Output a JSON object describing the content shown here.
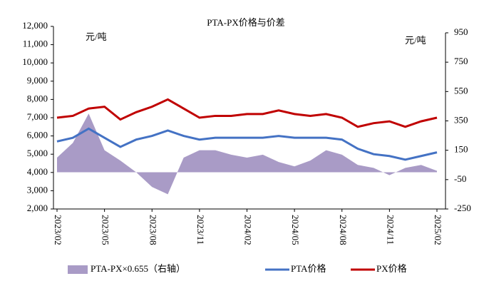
{
  "chart_data": {
    "type": "combo",
    "title": "PTA-PX价格与价差",
    "y_unit": "元/吨",
    "y2_unit": "元/吨",
    "x": [
      "2023/02",
      "2023/03",
      "2023/04",
      "2023/05",
      "2023/06",
      "2023/07",
      "2023/08",
      "2023/09",
      "2023/10",
      "2023/11",
      "2023/12",
      "2024/01",
      "2024/02",
      "2024/03",
      "2024/04",
      "2024/05",
      "2024/06",
      "2024/07",
      "2024/08",
      "2024/09",
      "2024/10",
      "2024/11",
      "2024/12",
      "2025/01",
      "2025/02"
    ],
    "xticks": [
      "2023/02",
      "2023/05",
      "2023/08",
      "2023/11",
      "2024/02",
      "2024/05",
      "2024/08",
      "2024/11",
      "2025/02"
    ],
    "series": [
      {
        "name": "PTA-PX×0.655（右轴）",
        "kind": "area",
        "axis": "y2",
        "color": "#a99bc6",
        "values": [
          100,
          200,
          400,
          150,
          80,
          0,
          -100,
          -150,
          100,
          150,
          150,
          120,
          100,
          120,
          70,
          40,
          80,
          150,
          120,
          50,
          30,
          -20,
          30,
          50,
          10
        ]
      },
      {
        "name": "PTA价格",
        "kind": "line",
        "color": "#4472c4",
        "values": [
          5700,
          5900,
          6400,
          5900,
          5400,
          5800,
          6000,
          6300,
          6000,
          5800,
          5900,
          5900,
          5900,
          5900,
          6000,
          5900,
          5900,
          5900,
          5800,
          5300,
          5000,
          4900,
          4700,
          4900,
          5100
        ]
      },
      {
        "name": "PX价格",
        "kind": "line",
        "color": "#c00000",
        "values": [
          7000,
          7100,
          7500,
          7600,
          6900,
          7300,
          7600,
          8000,
          7500,
          7000,
          7100,
          7100,
          7200,
          7200,
          7400,
          7200,
          7100,
          7200,
          7000,
          6500,
          6700,
          6800,
          6500,
          6800,
          7000
        ]
      }
    ],
    "ylim": [
      2000,
      12000
    ],
    "yticks": [
      {
        "value": 2000,
        "label": "2,000"
      },
      {
        "value": 3000,
        "label": "3,000"
      },
      {
        "value": 4000,
        "label": "4,000"
      },
      {
        "value": 5000,
        "label": "5,000"
      },
      {
        "value": 6000,
        "label": "6,000"
      },
      {
        "value": 7000,
        "label": "7,000"
      },
      {
        "value": 8000,
        "label": "8,000"
      },
      {
        "value": 9000,
        "label": "9,000"
      },
      {
        "value": 10000,
        "label": "10,000"
      },
      {
        "value": 11000,
        "label": "11,000"
      },
      {
        "value": 12000,
        "label": "12,000"
      }
    ],
    "y2lim": [
      -250,
      950
    ],
    "y2ticks": [
      -250,
      -50,
      150,
      350,
      550,
      750,
      950
    ]
  }
}
